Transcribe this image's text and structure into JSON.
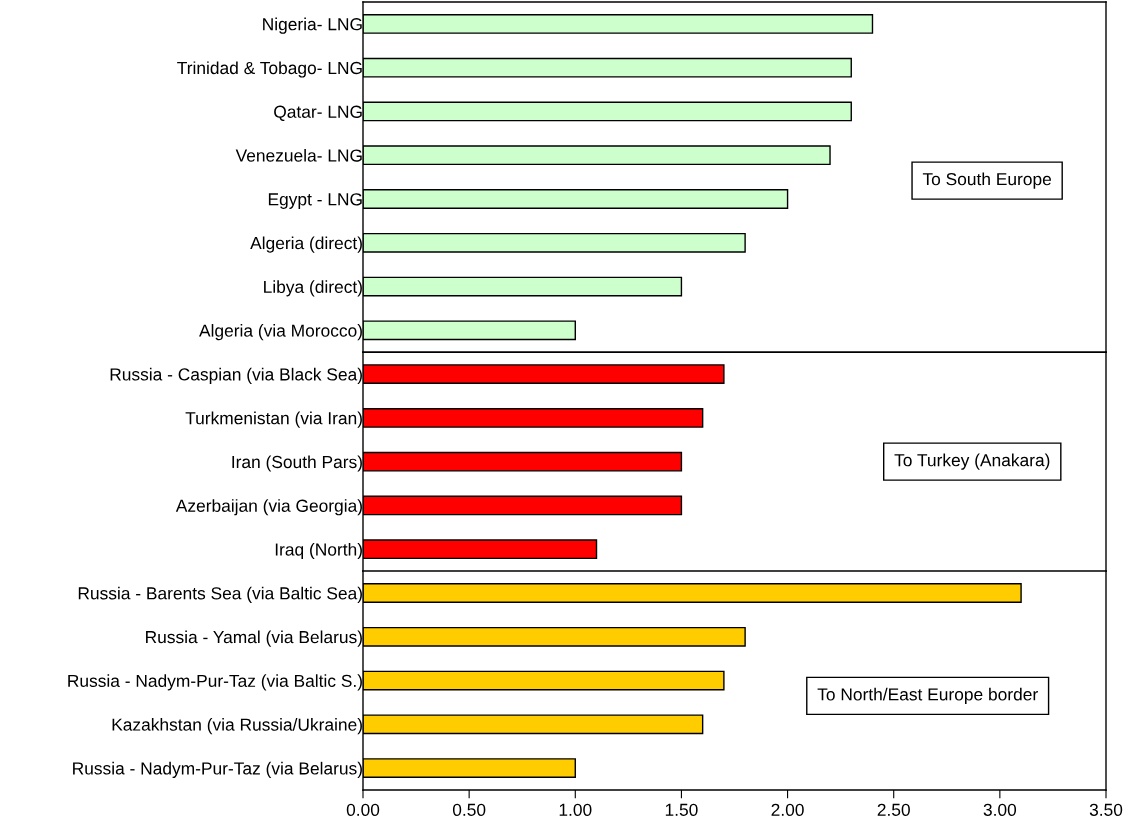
{
  "chart_data": [
    {
      "type": "bar",
      "orientation": "horizontal",
      "categories": [
        "Nigeria- LNG",
        "Trinidad & Tobago- LNG",
        "Qatar- LNG",
        "Venezuela- LNG",
        "Egypt - LNG",
        "Algeria (direct)",
        "Libya (direct)",
        "Algeria (via Morocco)"
      ],
      "values": [
        2.4,
        2.3,
        2.3,
        2.2,
        2.0,
        1.8,
        1.5,
        1.0
      ],
      "color": "#ccffcc",
      "xlim": [
        0,
        3.5
      ],
      "tick_labels": "y",
      "grid": false,
      "legend": false,
      "annotations": [
        "To South Europe"
      ]
    },
    {
      "type": "bar",
      "orientation": "horizontal",
      "categories": [
        "Russia - Caspian (via Black Sea)",
        "Turkmenistan (via Iran)",
        "Iran (South Pars)",
        "Azerbaijan (via Georgia)",
        "Iraq (North)"
      ],
      "values": [
        1.7,
        1.6,
        1.5,
        1.5,
        1.1
      ],
      "color": "#ff0000",
      "xlim": [
        0,
        3.5
      ],
      "tick_labels": "y",
      "grid": false,
      "legend": false,
      "annotations": [
        "To Turkey (Anakara)"
      ]
    },
    {
      "type": "bar",
      "orientation": "horizontal",
      "categories": [
        "Russia - Barents Sea (via Baltic Sea)",
        "Russia - Yamal (via Belarus)",
        "Russia - Nadym-Pur-Taz (via Baltic S.)",
        "Kazakhstan (via Russia/Ukraine)",
        "Russia - Nadym-Pur-Taz (via Belarus)"
      ],
      "values": [
        3.1,
        1.8,
        1.7,
        1.6,
        1.0
      ],
      "color": "#ffcc00",
      "xlim": [
        0,
        3.5
      ],
      "xticks": [
        {
          "value": 0,
          "label": "0.00"
        },
        {
          "value": 0.5,
          "label": "0.50"
        },
        {
          "value": 1.0,
          "label": "1.00"
        },
        {
          "value": 1.5,
          "label": "1.50"
        },
        {
          "value": 2.0,
          "label": "2.00"
        },
        {
          "value": 2.5,
          "label": "2.50"
        },
        {
          "value": 3.0,
          "label": "3.00"
        },
        {
          "value": 3.5,
          "label": "3.50"
        }
      ],
      "grid": false,
      "legend": false,
      "annotations": [
        "To North/East Europe border"
      ]
    }
  ]
}
